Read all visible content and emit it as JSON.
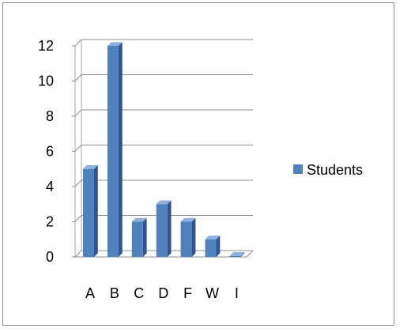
{
  "chart_data": {
    "type": "bar",
    "title": "",
    "xlabel": "",
    "ylabel": "",
    "categories": [
      "A",
      "B",
      "C",
      "D",
      "F",
      "W",
      "I"
    ],
    "series": [
      {
        "name": "Students",
        "values": [
          5,
          12,
          2,
          3,
          2,
          1,
          0
        ]
      }
    ],
    "ylim": [
      0,
      12
    ],
    "yticks": [
      "0",
      "2",
      "4",
      "6",
      "8",
      "10",
      "12"
    ],
    "grid": true,
    "legend": "right",
    "colors": {
      "bar_front": "#4f81bd",
      "bar_side": "#2f5590",
      "bar_top": "#8fb0dc",
      "grid": "#8c8c8c",
      "wall": "#a6a6a6"
    }
  }
}
